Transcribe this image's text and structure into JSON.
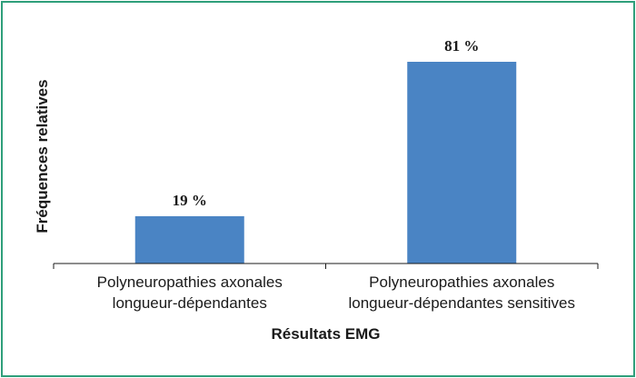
{
  "chart_data": {
    "type": "bar",
    "categories": [
      [
        "Polyneuropathies axonales",
        "longueur-dépendantes"
      ],
      [
        "Polyneuropathies axonales",
        "longueur-dépendantes sensitives"
      ]
    ],
    "values": [
      19,
      81
    ],
    "data_labels": [
      "19 %",
      "81 %"
    ],
    "title": "",
    "xlabel": "Résultats EMG",
    "ylabel": "Fréquences relatives",
    "ylim": [
      0,
      100
    ],
    "grid": false,
    "legend": "none",
    "bar_color": "#4a84c4",
    "frame_color": "#2e9e7a"
  }
}
